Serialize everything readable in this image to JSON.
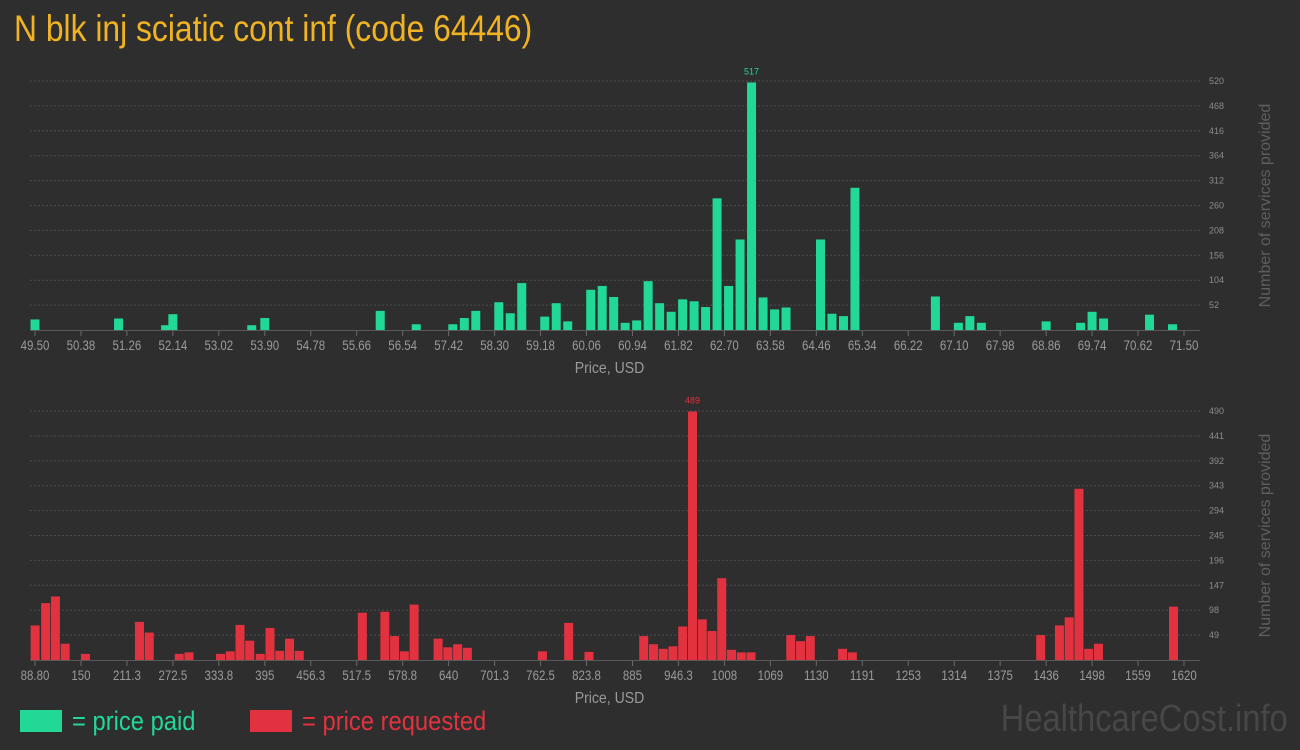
{
  "title": "N blk inj sciatic cont inf (code 64446)",
  "watermark": "HealthcareCost.info",
  "legend": {
    "paid": {
      "label": "= price paid",
      "color": "#22d897"
    },
    "requested": {
      "label": "= price requested",
      "color": "#e2323f"
    }
  },
  "chart_data": [
    {
      "type": "bar",
      "name": "price-paid",
      "color": "#22d897",
      "xlabel": "Price, USD",
      "ylabel": "Number of services provided",
      "xlim": [
        49.5,
        71.5
      ],
      "ylim": [
        0,
        520
      ],
      "x_ticks": [
        "49.50",
        "50.38",
        "51.26",
        "52.14",
        "53.02",
        "53.90",
        "54.78",
        "55.66",
        "56.54",
        "57.42",
        "58.30",
        "59.18",
        "60.06",
        "60.94",
        "61.82",
        "62.70",
        "63.58",
        "64.46",
        "65.34",
        "66.22",
        "67.10",
        "67.98",
        "68.86",
        "69.74",
        "70.62",
        "71.50"
      ],
      "y_ticks": [
        "52",
        "104",
        "156",
        "208",
        "260",
        "312",
        "364",
        "416",
        "468",
        "520"
      ],
      "max_label": "517",
      "bars": [
        {
          "x": 49.5,
          "y": 22
        },
        {
          "x": 51.1,
          "y": 24
        },
        {
          "x": 52.0,
          "y": 10
        },
        {
          "x": 52.14,
          "y": 33
        },
        {
          "x": 53.65,
          "y": 10
        },
        {
          "x": 53.9,
          "y": 25
        },
        {
          "x": 56.11,
          "y": 40
        },
        {
          "x": 56.8,
          "y": 12
        },
        {
          "x": 57.5,
          "y": 12
        },
        {
          "x": 57.72,
          "y": 25
        },
        {
          "x": 57.94,
          "y": 40
        },
        {
          "x": 58.38,
          "y": 58
        },
        {
          "x": 58.6,
          "y": 35
        },
        {
          "x": 58.82,
          "y": 98
        },
        {
          "x": 59.26,
          "y": 28
        },
        {
          "x": 59.48,
          "y": 56
        },
        {
          "x": 59.7,
          "y": 18
        },
        {
          "x": 60.14,
          "y": 84
        },
        {
          "x": 60.36,
          "y": 92
        },
        {
          "x": 60.58,
          "y": 69
        },
        {
          "x": 60.8,
          "y": 15
        },
        {
          "x": 61.02,
          "y": 20
        },
        {
          "x": 61.24,
          "y": 102
        },
        {
          "x": 61.46,
          "y": 56
        },
        {
          "x": 61.68,
          "y": 38
        },
        {
          "x": 61.9,
          "y": 64
        },
        {
          "x": 62.12,
          "y": 60
        },
        {
          "x": 62.34,
          "y": 48
        },
        {
          "x": 62.56,
          "y": 275
        },
        {
          "x": 62.78,
          "y": 92
        },
        {
          "x": 63.0,
          "y": 189
        },
        {
          "x": 63.22,
          "y": 517
        },
        {
          "x": 63.44,
          "y": 68
        },
        {
          "x": 63.66,
          "y": 43
        },
        {
          "x": 63.88,
          "y": 47
        },
        {
          "x": 64.54,
          "y": 189
        },
        {
          "x": 64.76,
          "y": 34
        },
        {
          "x": 64.98,
          "y": 29
        },
        {
          "x": 65.2,
          "y": 297
        },
        {
          "x": 66.74,
          "y": 70
        },
        {
          "x": 67.18,
          "y": 15
        },
        {
          "x": 67.4,
          "y": 29
        },
        {
          "x": 67.62,
          "y": 15
        },
        {
          "x": 68.86,
          "y": 18
        },
        {
          "x": 69.52,
          "y": 15
        },
        {
          "x": 69.74,
          "y": 38
        },
        {
          "x": 69.96,
          "y": 24
        },
        {
          "x": 70.84,
          "y": 32
        },
        {
          "x": 71.28,
          "y": 12
        }
      ]
    },
    {
      "type": "bar",
      "name": "price-requested",
      "color": "#e2323f",
      "xlabel": "Price, USD",
      "ylabel": "Number of services provided",
      "xlim": [
        88.8,
        1620
      ],
      "ylim": [
        0,
        490
      ],
      "x_ticks": [
        "88.80",
        "150",
        "211.3",
        "272.5",
        "333.8",
        "395",
        "456.3",
        "517.5",
        "578.8",
        "640",
        "701.3",
        "762.5",
        "823.8",
        "885",
        "946.3",
        "1008",
        "1069",
        "1130",
        "1191",
        "1253",
        "1314",
        "1375",
        "1436",
        "1498",
        "1559",
        "1620"
      ],
      "y_ticks": [
        "49",
        "98",
        "147",
        "196",
        "245",
        "294",
        "343",
        "392",
        "441",
        "490"
      ],
      "max_label": "489",
      "bars": [
        {
          "x": 89,
          "y": 68
        },
        {
          "x": 103,
          "y": 112
        },
        {
          "x": 116,
          "y": 125
        },
        {
          "x": 129,
          "y": 32
        },
        {
          "x": 156,
          "y": 12
        },
        {
          "x": 228,
          "y": 75
        },
        {
          "x": 241,
          "y": 54
        },
        {
          "x": 281,
          "y": 12
        },
        {
          "x": 294,
          "y": 15
        },
        {
          "x": 336,
          "y": 12
        },
        {
          "x": 349,
          "y": 17
        },
        {
          "x": 362,
          "y": 69
        },
        {
          "x": 375,
          "y": 38
        },
        {
          "x": 389,
          "y": 12
        },
        {
          "x": 402,
          "y": 63
        },
        {
          "x": 415,
          "y": 18
        },
        {
          "x": 428,
          "y": 42
        },
        {
          "x": 441,
          "y": 18
        },
        {
          "x": 525,
          "y": 93
        },
        {
          "x": 555,
          "y": 95
        },
        {
          "x": 568,
          "y": 47
        },
        {
          "x": 581,
          "y": 17
        },
        {
          "x": 594,
          "y": 109
        },
        {
          "x": 626,
          "y": 42
        },
        {
          "x": 639,
          "y": 25
        },
        {
          "x": 652,
          "y": 31
        },
        {
          "x": 665,
          "y": 24
        },
        {
          "x": 765,
          "y": 17
        },
        {
          "x": 800,
          "y": 73
        },
        {
          "x": 827,
          "y": 16
        },
        {
          "x": 900,
          "y": 47
        },
        {
          "x": 913,
          "y": 31
        },
        {
          "x": 926,
          "y": 22
        },
        {
          "x": 939,
          "y": 27
        },
        {
          "x": 952,
          "y": 66
        },
        {
          "x": 965,
          "y": 489
        },
        {
          "x": 978,
          "y": 80
        },
        {
          "x": 991,
          "y": 57
        },
        {
          "x": 1004,
          "y": 161
        },
        {
          "x": 1017,
          "y": 20
        },
        {
          "x": 1030,
          "y": 15
        },
        {
          "x": 1043,
          "y": 15
        },
        {
          "x": 1096,
          "y": 49
        },
        {
          "x": 1109,
          "y": 37
        },
        {
          "x": 1122,
          "y": 47
        },
        {
          "x": 1165,
          "y": 22
        },
        {
          "x": 1178,
          "y": 15
        },
        {
          "x": 1429,
          "y": 49
        },
        {
          "x": 1454,
          "y": 68
        },
        {
          "x": 1467,
          "y": 84
        },
        {
          "x": 1480,
          "y": 337
        },
        {
          "x": 1493,
          "y": 22
        },
        {
          "x": 1506,
          "y": 32
        },
        {
          "x": 1606,
          "y": 105
        }
      ]
    }
  ]
}
